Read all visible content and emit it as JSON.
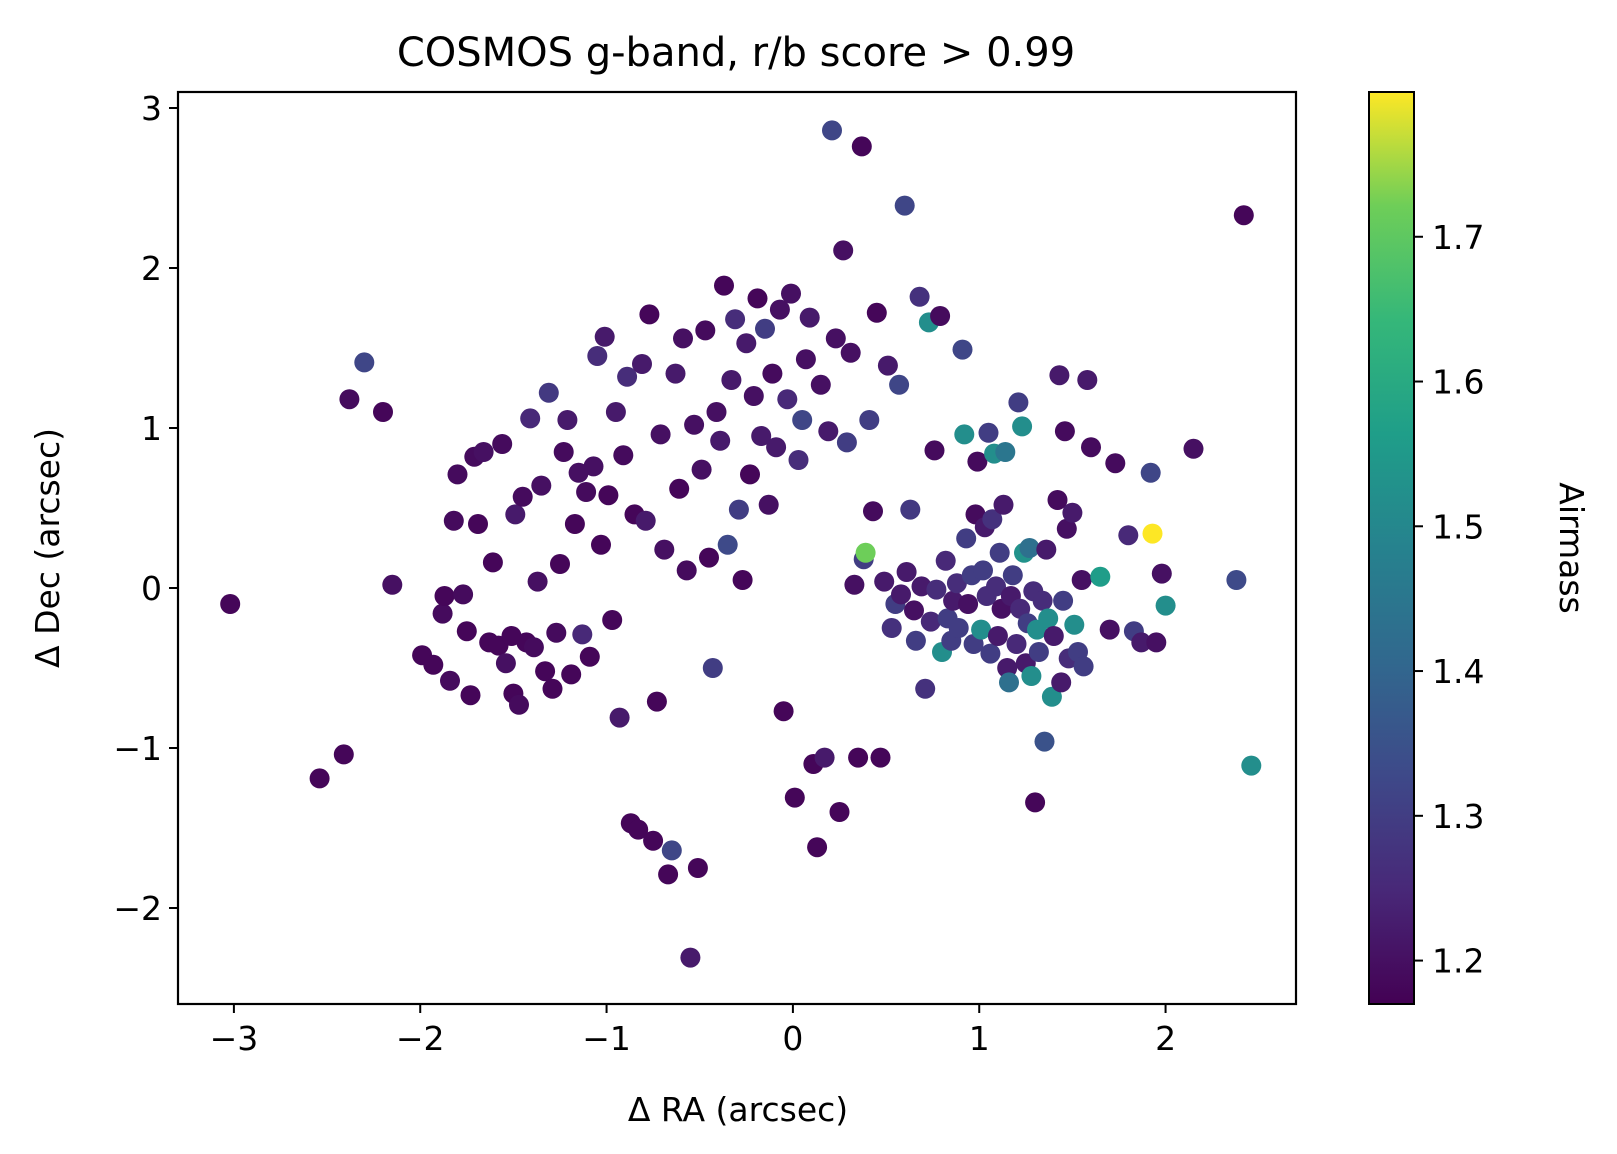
{
  "chart_data": {
    "type": "scatter",
    "title": "COSMOS g-band, r/b score > 0.99",
    "xlabel": "Δ RA (arcsec)",
    "ylabel": "Δ Dec (arcsec)",
    "colorbar_label": "Airmass",
    "xlim": [
      -3.3,
      2.7
    ],
    "ylim": [
      -2.6,
      3.1
    ],
    "clim": [
      1.17,
      1.8
    ],
    "colormap": "viridis",
    "grid": false,
    "x_ticks": [
      -3,
      -2,
      -1,
      0,
      1,
      2
    ],
    "x_tick_labels": [
      "−3",
      "−2",
      "−1",
      "0",
      "1",
      "2"
    ],
    "y_ticks": [
      -2,
      -1,
      0,
      1,
      2,
      3
    ],
    "y_tick_labels": [
      "−2",
      "−1",
      "0",
      "1",
      "2",
      "3"
    ],
    "colorbar_ticks": [
      1.2,
      1.3,
      1.4,
      1.5,
      1.6,
      1.7
    ],
    "colorbar_tick_labels": [
      "1.2",
      "1.3",
      "1.4",
      "1.5",
      "1.6",
      "1.7"
    ],
    "points": [
      [
        -3.02,
        -0.1,
        1.18
      ],
      [
        -2.54,
        -1.19,
        1.18
      ],
      [
        -2.41,
        -1.04,
        1.18
      ],
      [
        -2.38,
        1.18,
        1.19
      ],
      [
        -2.3,
        1.41,
        1.32
      ],
      [
        -2.2,
        1.1,
        1.18
      ],
      [
        -2.15,
        0.02,
        1.2
      ],
      [
        -1.99,
        -0.42,
        1.18
      ],
      [
        -1.93,
        -0.48,
        1.18
      ],
      [
        -1.88,
        -0.16,
        1.19
      ],
      [
        -1.87,
        -0.05,
        1.18
      ],
      [
        -1.84,
        -0.58,
        1.19
      ],
      [
        -1.82,
        0.42,
        1.19
      ],
      [
        -1.8,
        0.71,
        1.19
      ],
      [
        -1.77,
        -0.04,
        1.19
      ],
      [
        -1.75,
        -0.27,
        1.18
      ],
      [
        -1.73,
        -0.67,
        1.18
      ],
      [
        -1.71,
        0.82,
        1.19
      ],
      [
        -1.69,
        0.4,
        1.18
      ],
      [
        -1.66,
        0.85,
        1.2
      ],
      [
        -1.63,
        -0.34,
        1.18
      ],
      [
        -1.61,
        0.16,
        1.18
      ],
      [
        -1.58,
        -0.36,
        1.18
      ],
      [
        -1.56,
        0.9,
        1.19
      ],
      [
        -1.54,
        -0.47,
        1.2
      ],
      [
        -1.51,
        -0.3,
        1.18
      ],
      [
        -1.5,
        -0.66,
        1.18
      ],
      [
        -1.49,
        0.46,
        1.22
      ],
      [
        -1.47,
        -0.73,
        1.19
      ],
      [
        -1.45,
        0.57,
        1.19
      ],
      [
        -1.43,
        -0.34,
        1.18
      ],
      [
        -1.41,
        1.06,
        1.25
      ],
      [
        -1.39,
        -0.37,
        1.19
      ],
      [
        -1.37,
        0.04,
        1.2
      ],
      [
        -1.35,
        0.64,
        1.2
      ],
      [
        -1.33,
        -0.52,
        1.18
      ],
      [
        -1.31,
        1.22,
        1.29
      ],
      [
        -1.29,
        -0.63,
        1.18
      ],
      [
        -1.27,
        -0.28,
        1.19
      ],
      [
        -1.25,
        0.15,
        1.18
      ],
      [
        -1.23,
        0.85,
        1.19
      ],
      [
        -1.21,
        1.05,
        1.22
      ],
      [
        -1.19,
        -0.54,
        1.18
      ],
      [
        -1.17,
        0.4,
        1.18
      ],
      [
        -1.15,
        0.72,
        1.2
      ],
      [
        -1.13,
        -0.29,
        1.25
      ],
      [
        -1.11,
        0.6,
        1.19
      ],
      [
        -1.09,
        -0.43,
        1.18
      ],
      [
        -1.07,
        0.76,
        1.2
      ],
      [
        -1.05,
        1.45,
        1.26
      ],
      [
        -1.03,
        0.27,
        1.18
      ],
      [
        -1.01,
        1.57,
        1.22
      ],
      [
        -0.99,
        0.58,
        1.18
      ],
      [
        -0.97,
        -0.2,
        1.18
      ],
      [
        -0.95,
        1.1,
        1.22
      ],
      [
        -0.93,
        -0.81,
        1.22
      ],
      [
        -0.91,
        0.83,
        1.19
      ],
      [
        -0.89,
        1.32,
        1.26
      ],
      [
        -0.87,
        -1.47,
        1.18
      ],
      [
        -0.85,
        0.46,
        1.18
      ],
      [
        -0.83,
        -1.51,
        1.18
      ],
      [
        -0.81,
        1.4,
        1.22
      ],
      [
        -0.79,
        0.42,
        1.22
      ],
      [
        -0.77,
        1.71,
        1.18
      ],
      [
        -0.75,
        -1.58,
        1.18
      ],
      [
        -0.73,
        -0.71,
        1.18
      ],
      [
        -0.71,
        0.96,
        1.2
      ],
      [
        -0.69,
        0.24,
        1.2
      ],
      [
        -0.67,
        -1.79,
        1.18
      ],
      [
        -0.65,
        -1.64,
        1.32
      ],
      [
        -0.63,
        1.34,
        1.22
      ],
      [
        -0.61,
        0.62,
        1.18
      ],
      [
        -0.59,
        1.56,
        1.2
      ],
      [
        -0.57,
        0.11,
        1.19
      ],
      [
        -0.55,
        -2.31,
        1.22
      ],
      [
        -0.53,
        1.02,
        1.2
      ],
      [
        -0.51,
        -1.75,
        1.18
      ],
      [
        -0.49,
        0.74,
        1.2
      ],
      [
        -0.47,
        1.61,
        1.19
      ],
      [
        -0.45,
        0.19,
        1.18
      ],
      [
        -0.43,
        -0.5,
        1.3
      ],
      [
        -0.41,
        1.1,
        1.2
      ],
      [
        -0.39,
        0.92,
        1.22
      ],
      [
        -0.37,
        1.89,
        1.18
      ],
      [
        -0.35,
        0.27,
        1.33
      ],
      [
        -0.33,
        1.3,
        1.22
      ],
      [
        -0.31,
        1.68,
        1.26
      ],
      [
        -0.29,
        0.49,
        1.3
      ],
      [
        -0.27,
        0.05,
        1.18
      ],
      [
        -0.25,
        1.53,
        1.22
      ],
      [
        -0.23,
        0.71,
        1.18
      ],
      [
        -0.21,
        1.2,
        1.2
      ],
      [
        -0.19,
        1.81,
        1.18
      ],
      [
        -0.17,
        0.95,
        1.22
      ],
      [
        -0.15,
        1.62,
        1.3
      ],
      [
        -0.13,
        0.52,
        1.2
      ],
      [
        -0.11,
        1.34,
        1.19
      ],
      [
        -0.09,
        0.88,
        1.22
      ],
      [
        -0.07,
        1.74,
        1.2
      ],
      [
        -0.05,
        -0.77,
        1.18
      ],
      [
        -0.03,
        1.18,
        1.25
      ],
      [
        -0.01,
        1.84,
        1.2
      ],
      [
        0.01,
        -1.31,
        1.18
      ],
      [
        0.03,
        0.8,
        1.26
      ],
      [
        0.05,
        1.05,
        1.32
      ],
      [
        0.07,
        1.43,
        1.2
      ],
      [
        0.09,
        1.69,
        1.22
      ],
      [
        0.11,
        -1.1,
        1.18
      ],
      [
        0.13,
        -1.62,
        1.18
      ],
      [
        0.15,
        1.27,
        1.2
      ],
      [
        0.17,
        -1.06,
        1.22
      ],
      [
        0.19,
        0.98,
        1.22
      ],
      [
        0.21,
        2.86,
        1.32
      ],
      [
        0.23,
        1.56,
        1.2
      ],
      [
        0.25,
        -1.4,
        1.18
      ],
      [
        0.27,
        2.11,
        1.2
      ],
      [
        0.29,
        0.91,
        1.3
      ],
      [
        0.31,
        1.47,
        1.2
      ],
      [
        0.33,
        0.02,
        1.2
      ],
      [
        0.35,
        -1.06,
        1.18
      ],
      [
        0.37,
        2.76,
        1.18
      ],
      [
        0.38,
        0.18,
        1.3
      ],
      [
        0.39,
        0.22,
        1.72
      ],
      [
        0.41,
        1.05,
        1.3
      ],
      [
        0.43,
        0.48,
        1.19
      ],
      [
        0.45,
        1.72,
        1.18
      ],
      [
        0.47,
        -1.06,
        1.18
      ],
      [
        0.49,
        0.04,
        1.22
      ],
      [
        0.51,
        1.39,
        1.22
      ],
      [
        0.53,
        -0.25,
        1.27
      ],
      [
        0.55,
        -0.1,
        1.3
      ],
      [
        0.57,
        1.27,
        1.32
      ],
      [
        0.58,
        -0.04,
        1.22
      ],
      [
        0.6,
        2.39,
        1.32
      ],
      [
        0.61,
        0.1,
        1.22
      ],
      [
        0.63,
        0.49,
        1.29
      ],
      [
        0.65,
        -0.14,
        1.2
      ],
      [
        0.66,
        -0.33,
        1.3
      ],
      [
        0.68,
        1.82,
        1.27
      ],
      [
        0.69,
        0.01,
        1.22
      ],
      [
        0.71,
        -0.63,
        1.27
      ],
      [
        0.73,
        1.66,
        1.52
      ],
      [
        0.74,
        -0.21,
        1.25
      ],
      [
        0.76,
        0.86,
        1.19
      ],
      [
        0.77,
        -0.01,
        1.26
      ],
      [
        0.79,
        1.7,
        1.19
      ],
      [
        0.8,
        -0.4,
        1.52
      ],
      [
        0.82,
        0.17,
        1.25
      ],
      [
        0.83,
        -0.19,
        1.3
      ],
      [
        0.85,
        -0.33,
        1.3
      ],
      [
        0.86,
        -0.08,
        1.22
      ],
      [
        0.88,
        0.03,
        1.26
      ],
      [
        0.89,
        -0.25,
        1.3
      ],
      [
        0.91,
        1.49,
        1.32
      ],
      [
        0.92,
        0.96,
        1.52
      ],
      [
        0.93,
        0.31,
        1.3
      ],
      [
        0.94,
        -0.1,
        1.2
      ],
      [
        0.96,
        0.08,
        1.3
      ],
      [
        0.97,
        -0.35,
        1.3
      ],
      [
        0.98,
        0.46,
        1.19
      ],
      [
        0.99,
        0.79,
        1.19
      ],
      [
        1.01,
        -0.26,
        1.52
      ],
      [
        1.02,
        0.11,
        1.3
      ],
      [
        1.03,
        0.38,
        1.22
      ],
      [
        1.04,
        -0.05,
        1.26
      ],
      [
        1.05,
        0.97,
        1.3
      ],
      [
        1.06,
        -0.41,
        1.3
      ],
      [
        1.07,
        0.43,
        1.27
      ],
      [
        1.08,
        0.84,
        1.52
      ],
      [
        1.09,
        0.01,
        1.26
      ],
      [
        1.1,
        -0.3,
        1.22
      ],
      [
        1.11,
        0.22,
        1.3
      ],
      [
        1.12,
        -0.13,
        1.2
      ],
      [
        1.13,
        0.52,
        1.22
      ],
      [
        1.14,
        0.85,
        1.45
      ],
      [
        1.15,
        -0.5,
        1.22
      ],
      [
        1.16,
        -0.59,
        1.43
      ],
      [
        1.17,
        -0.05,
        1.22
      ],
      [
        1.18,
        0.08,
        1.3
      ],
      [
        1.2,
        -0.35,
        1.25
      ],
      [
        1.21,
        1.16,
        1.3
      ],
      [
        1.22,
        -0.13,
        1.25
      ],
      [
        1.23,
        1.01,
        1.52
      ],
      [
        1.24,
        0.22,
        1.53
      ],
      [
        1.25,
        -0.47,
        1.22
      ],
      [
        1.26,
        -0.22,
        1.3
      ],
      [
        1.27,
        0.25,
        1.43
      ],
      [
        1.28,
        -0.55,
        1.52
      ],
      [
        1.29,
        -0.02,
        1.26
      ],
      [
        1.3,
        -1.34,
        1.18
      ],
      [
        1.31,
        -0.26,
        1.52
      ],
      [
        1.32,
        -0.4,
        1.3
      ],
      [
        1.34,
        -0.08,
        1.26
      ],
      [
        1.35,
        -0.96,
        1.35
      ],
      [
        1.36,
        0.24,
        1.22
      ],
      [
        1.37,
        -0.19,
        1.52
      ],
      [
        1.39,
        -0.68,
        1.52
      ],
      [
        1.4,
        -0.3,
        1.22
      ],
      [
        1.42,
        0.55,
        1.19
      ],
      [
        1.43,
        1.33,
        1.22
      ],
      [
        1.44,
        -0.59,
        1.22
      ],
      [
        1.45,
        -0.08,
        1.3
      ],
      [
        1.46,
        0.98,
        1.19
      ],
      [
        1.47,
        0.37,
        1.2
      ],
      [
        1.48,
        -0.44,
        1.26
      ],
      [
        1.5,
        0.47,
        1.22
      ],
      [
        1.51,
        -0.23,
        1.52
      ],
      [
        1.53,
        -0.4,
        1.3
      ],
      [
        1.55,
        0.05,
        1.2
      ],
      [
        1.56,
        -0.49,
        1.3
      ],
      [
        1.58,
        1.3,
        1.22
      ],
      [
        1.6,
        0.88,
        1.19
      ],
      [
        1.65,
        0.07,
        1.56
      ],
      [
        1.7,
        -0.26,
        1.2
      ],
      [
        1.73,
        0.78,
        1.19
      ],
      [
        1.8,
        0.33,
        1.25
      ],
      [
        1.83,
        -0.27,
        1.3
      ],
      [
        1.87,
        -0.34,
        1.22
      ],
      [
        1.92,
        0.72,
        1.32
      ],
      [
        1.93,
        0.34,
        1.8
      ],
      [
        1.95,
        -0.34,
        1.2
      ],
      [
        1.98,
        0.09,
        1.2
      ],
      [
        2.0,
        -0.11,
        1.52
      ],
      [
        2.15,
        0.87,
        1.2
      ],
      [
        2.38,
        0.05,
        1.33
      ],
      [
        2.42,
        2.33,
        1.18
      ],
      [
        2.46,
        -1.11,
        1.52
      ]
    ]
  }
}
